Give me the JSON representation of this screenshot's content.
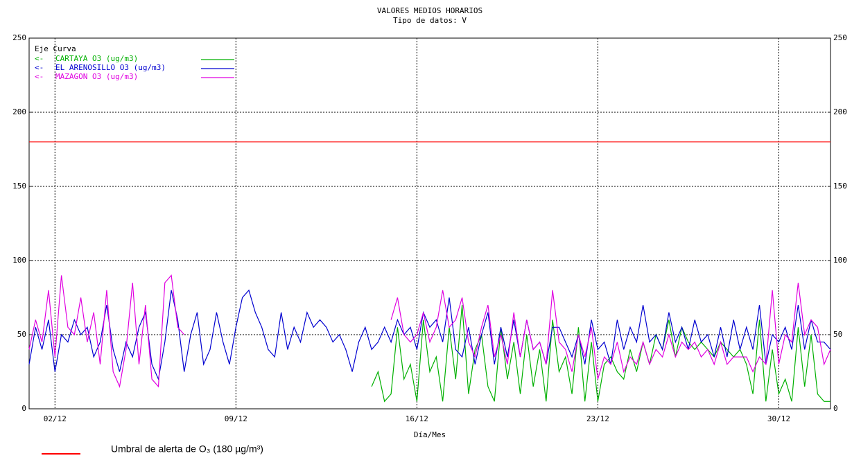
{
  "chart_data": {
    "type": "line",
    "title": "VALORES MEDIOS HORARIOS",
    "subtitle": "Tipo de datos:  V",
    "xlabel": "Día/Mes",
    "legend_header": "Eje Curva",
    "legend": "upper left",
    "grid": true,
    "xlim": [
      0,
      744
    ],
    "xticks": [
      {
        "value": 24,
        "label": "02/12"
      },
      {
        "value": 192,
        "label": "09/12"
      },
      {
        "value": 360,
        "label": "16/12"
      },
      {
        "value": 528,
        "label": "23/12"
      },
      {
        "value": 696,
        "label": "30/12"
      }
    ],
    "ylim": [
      0,
      250
    ],
    "yticks": [
      0,
      50,
      100,
      150,
      200,
      250
    ],
    "y2lim": [
      0,
      250
    ],
    "y2ticks": [
      0,
      50,
      100,
      150,
      200,
      250
    ],
    "threshold": {
      "value": 180,
      "color": "#ff0000",
      "label": "Umbral de alerta de O₃  (180 µg/m³)"
    },
    "x": [
      0,
      6,
      12,
      18,
      24,
      30,
      36,
      42,
      48,
      54,
      60,
      66,
      72,
      78,
      84,
      90,
      96,
      102,
      108,
      114,
      120,
      126,
      132,
      138,
      144,
      150,
      156,
      162,
      168,
      174,
      180,
      186,
      192,
      198,
      204,
      210,
      216,
      222,
      228,
      234,
      240,
      246,
      252,
      258,
      264,
      270,
      276,
      282,
      288,
      294,
      300,
      306,
      312,
      318,
      324,
      330,
      336,
      342,
      348,
      354,
      360,
      366,
      372,
      378,
      384,
      390,
      396,
      402,
      408,
      414,
      420,
      426,
      432,
      438,
      444,
      450,
      456,
      462,
      468,
      474,
      480,
      486,
      492,
      498,
      504,
      510,
      516,
      522,
      528,
      534,
      540,
      546,
      552,
      558,
      564,
      570,
      576,
      582,
      588,
      594,
      600,
      606,
      612,
      618,
      624,
      630,
      636,
      642,
      648,
      654,
      660,
      666,
      672,
      678,
      684,
      690,
      696,
      702,
      708,
      714,
      720,
      726,
      732,
      738,
      744
    ],
    "series": [
      {
        "name": "CARTAYA O3  (ug/m3)",
        "axis_label": "<-",
        "color": "#00b000",
        "values": [
          null,
          null,
          null,
          null,
          null,
          null,
          null,
          null,
          null,
          null,
          null,
          null,
          null,
          null,
          null,
          null,
          null,
          null,
          null,
          null,
          null,
          null,
          null,
          null,
          null,
          null,
          null,
          null,
          null,
          null,
          null,
          null,
          null,
          null,
          null,
          null,
          null,
          null,
          null,
          null,
          null,
          null,
          null,
          null,
          null,
          null,
          null,
          null,
          null,
          null,
          null,
          null,
          null,
          15,
          25,
          5,
          10,
          55,
          20,
          30,
          5,
          60,
          25,
          35,
          5,
          55,
          20,
          70,
          10,
          40,
          50,
          15,
          5,
          55,
          20,
          45,
          10,
          50,
          15,
          40,
          5,
          60,
          25,
          35,
          10,
          55,
          5,
          45,
          5,
          30,
          35,
          25,
          20,
          40,
          25,
          45,
          30,
          50,
          40,
          60,
          35,
          55,
          45,
          40,
          45,
          40,
          35,
          45,
          40,
          35,
          40,
          30,
          10,
          60,
          5,
          40,
          10,
          20,
          5,
          55,
          15,
          50,
          10,
          5,
          5
        ]
      },
      {
        "name": "EL ARENOSILLO O3  (ug/m3)",
        "axis_label": "<-",
        "color": "#0000d0",
        "values": [
          30,
          55,
          40,
          60,
          25,
          50,
          45,
          60,
          50,
          55,
          35,
          45,
          70,
          40,
          25,
          45,
          35,
          55,
          65,
          30,
          20,
          45,
          80,
          60,
          25,
          50,
          65,
          30,
          40,
          65,
          45,
          30,
          55,
          75,
          80,
          65,
          55,
          40,
          35,
          65,
          40,
          55,
          45,
          65,
          55,
          60,
          55,
          45,
          50,
          40,
          25,
          45,
          55,
          40,
          45,
          55,
          45,
          60,
          50,
          55,
          40,
          65,
          55,
          60,
          45,
          75,
          40,
          35,
          55,
          30,
          50,
          65,
          30,
          55,
          35,
          60,
          35,
          60,
          40,
          45,
          30,
          55,
          55,
          45,
          35,
          50,
          30,
          60,
          40,
          45,
          30,
          60,
          40,
          55,
          45,
          70,
          45,
          50,
          40,
          65,
          45,
          55,
          40,
          60,
          45,
          50,
          35,
          55,
          35,
          60,
          40,
          55,
          40,
          70,
          30,
          50,
          45,
          55,
          40,
          70,
          40,
          60,
          45,
          45,
          40
        ]
      },
      {
        "name": "MAZAGON O3  (ug/m3)",
        "axis_label": "<-",
        "color": "#e000e0",
        "values": [
          40,
          60,
          45,
          80,
          35,
          90,
          55,
          50,
          75,
          45,
          65,
          30,
          80,
          25,
          15,
          40,
          85,
          30,
          70,
          20,
          15,
          85,
          90,
          55,
          50,
          null,
          null,
          null,
          null,
          null,
          null,
          null,
          null,
          null,
          null,
          null,
          null,
          null,
          null,
          null,
          null,
          null,
          null,
          null,
          null,
          null,
          null,
          null,
          null,
          null,
          null,
          null,
          null,
          null,
          null,
          null,
          60,
          75,
          50,
          45,
          50,
          65,
          45,
          55,
          80,
          55,
          60,
          75,
          45,
          35,
          55,
          70,
          35,
          50,
          30,
          65,
          35,
          60,
          40,
          45,
          30,
          80,
          45,
          40,
          25,
          50,
          35,
          55,
          20,
          35,
          30,
          45,
          25,
          35,
          30,
          45,
          30,
          40,
          35,
          50,
          35,
          45,
          40,
          45,
          35,
          40,
          30,
          45,
          30,
          35,
          35,
          35,
          25,
          35,
          30,
          80,
          30,
          50,
          45,
          85,
          50,
          60,
          55,
          30,
          40
        ]
      }
    ]
  }
}
